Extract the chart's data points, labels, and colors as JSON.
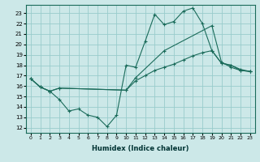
{
  "xlabel": "Humidex (Indice chaleur)",
  "bg_color": "#cce8e8",
  "grid_color": "#99cccc",
  "line_color": "#1a6b5a",
  "xlim": [
    -0.5,
    23.5
  ],
  "ylim": [
    11.5,
    23.8
  ],
  "yticks": [
    12,
    13,
    14,
    15,
    16,
    17,
    18,
    19,
    20,
    21,
    22,
    23
  ],
  "xticks": [
    0,
    1,
    2,
    3,
    4,
    5,
    6,
    7,
    8,
    9,
    10,
    11,
    12,
    13,
    14,
    15,
    16,
    17,
    18,
    19,
    20,
    21,
    22,
    23
  ],
  "line1_x": [
    0,
    1,
    2,
    3,
    4,
    5,
    6,
    7,
    8,
    9,
    10,
    11,
    12,
    13,
    14,
    15,
    16,
    17,
    18,
    19,
    20,
    21,
    22,
    23
  ],
  "line1_y": [
    16.7,
    15.9,
    15.5,
    14.7,
    13.6,
    13.8,
    13.2,
    13.0,
    12.1,
    13.2,
    18.0,
    17.8,
    20.3,
    22.9,
    21.9,
    22.2,
    23.2,
    23.5,
    22.0,
    19.4,
    18.2,
    18.0,
    17.5,
    17.4
  ],
  "line2_x": [
    0,
    1,
    2,
    3,
    10,
    11,
    14,
    19,
    20,
    21,
    22,
    23
  ],
  "line2_y": [
    16.7,
    15.9,
    15.5,
    15.8,
    15.6,
    16.8,
    19.4,
    21.8,
    18.3,
    17.8,
    17.5,
    17.4
  ],
  "line3_x": [
    0,
    1,
    2,
    3,
    10,
    11,
    12,
    13,
    14,
    15,
    16,
    17,
    18,
    19,
    20,
    21,
    22,
    23
  ],
  "line3_y": [
    16.7,
    15.9,
    15.5,
    15.8,
    15.6,
    16.5,
    17.0,
    17.5,
    17.8,
    18.1,
    18.5,
    18.9,
    19.2,
    19.4,
    18.2,
    18.0,
    17.6,
    17.4
  ]
}
